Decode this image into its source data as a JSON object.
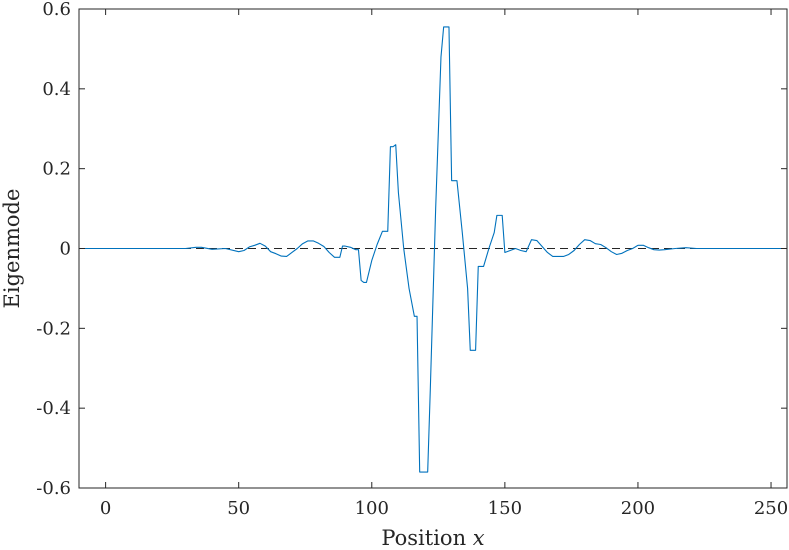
{
  "chart_data": {
    "type": "line",
    "title": "",
    "xlabel": {
      "prefix": "Position ",
      "variable": "x"
    },
    "ylabel": "Eigenmode",
    "xlim": [
      -10,
      256
    ],
    "ylim": [
      -0.6,
      0.6
    ],
    "xticks": [
      0,
      50,
      100,
      150,
      200,
      250
    ],
    "yticks": [
      0.6,
      0.4,
      0.2,
      0,
      -0.2,
      -0.4,
      -0.6
    ],
    "ytick_labels": [
      "0.6",
      "0.4",
      "0.2",
      "0",
      "-0.2",
      "-0.4",
      "-0.6"
    ],
    "grid": false,
    "reference_line": {
      "y": 0,
      "style": "dashed",
      "color": "#262626"
    },
    "series": [
      {
        "color": "#0072BD",
        "x": [
          -10,
          30,
          34,
          36,
          40,
          45,
          50,
          52,
          54,
          56,
          58,
          60,
          62,
          64,
          66,
          68,
          70,
          72,
          74,
          76,
          78,
          80,
          82,
          84,
          86,
          88,
          89,
          90,
          92,
          94,
          95,
          96,
          97,
          98,
          100,
          102,
          104,
          106,
          107,
          108,
          109,
          110,
          112,
          114,
          116,
          117,
          118,
          119,
          120,
          121,
          122,
          124,
          126,
          127,
          128,
          129,
          130,
          131,
          132,
          134,
          136,
          137,
          138,
          139,
          140,
          142,
          144,
          146,
          147,
          148,
          149,
          150,
          152,
          154,
          156,
          158,
          160,
          162,
          164,
          166,
          168,
          170,
          172,
          174,
          176,
          178,
          180,
          182,
          184,
          186,
          188,
          190,
          192,
          194,
          196,
          198,
          200,
          202,
          204,
          206,
          208,
          210,
          214,
          218,
          222,
          226,
          230,
          256
        ],
        "y": [
          0,
          0,
          0.003,
          0.003,
          -0.002,
          0,
          -0.008,
          -0.005,
          0.004,
          0.008,
          0.013,
          0.006,
          -0.008,
          -0.013,
          -0.019,
          -0.02,
          -0.01,
          0,
          0.012,
          0.019,
          0.019,
          0.013,
          0.005,
          -0.01,
          -0.022,
          -0.022,
          0.006,
          0.006,
          0.003,
          -0.003,
          -0.003,
          -0.08,
          -0.085,
          -0.085,
          -0.03,
          0.01,
          0.043,
          0.043,
          0.255,
          0.255,
          0.26,
          0.14,
          0,
          -0.1,
          -0.17,
          -0.17,
          -0.56,
          -0.56,
          -0.56,
          -0.56,
          -0.35,
          0.1,
          0.48,
          0.555,
          0.555,
          0.555,
          0.17,
          0.17,
          0.17,
          0.04,
          -0.1,
          -0.255,
          -0.255,
          -0.255,
          -0.045,
          -0.045,
          0,
          0.04,
          0.083,
          0.083,
          0.083,
          -0.01,
          -0.005,
          0,
          -0.005,
          -0.008,
          0.022,
          0.02,
          0.005,
          -0.01,
          -0.02,
          -0.02,
          -0.02,
          -0.015,
          -0.005,
          0.01,
          0.022,
          0.02,
          0.012,
          0.01,
          0.002,
          -0.008,
          -0.015,
          -0.012,
          -0.005,
          0,
          0.008,
          0.008,
          0.002,
          -0.003,
          -0.004,
          -0.003,
          0,
          0.002,
          0,
          0,
          0,
          0
        ]
      }
    ]
  }
}
